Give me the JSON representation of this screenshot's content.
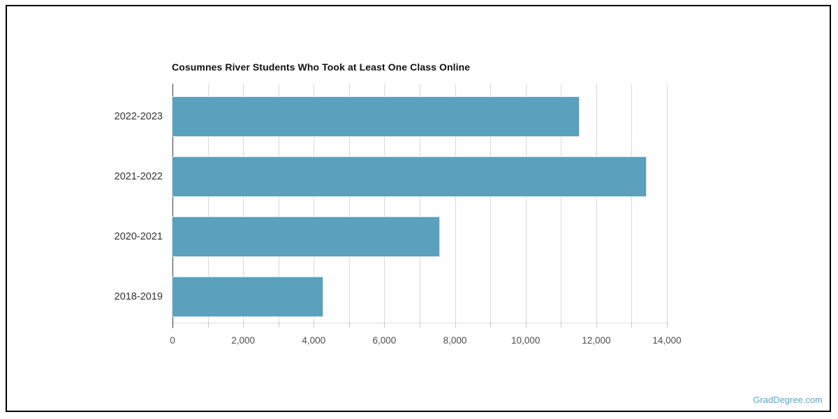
{
  "watermark": {
    "text": "GradDegree.com",
    "color": "#5da7c7"
  },
  "frame_color": "#000000",
  "chart_data": {
    "type": "bar",
    "orientation": "horizontal",
    "title": "Cosumnes River Students Who Took at Least One Class Online",
    "categories": [
      "2022-2023",
      "2021-2022",
      "2020-2021",
      "2018-2019"
    ],
    "values": [
      11500,
      13400,
      7550,
      4250
    ],
    "xlabel": "",
    "ylabel": "",
    "xlim": [
      0,
      14000
    ],
    "grid_step": 1000,
    "tick_step": 1000,
    "label_step": 2000,
    "x_tick_labels": [
      "0",
      "2,000",
      "4,000",
      "6,000",
      "8,000",
      "10,000",
      "12,000",
      "14,000"
    ],
    "bar_color": "#5BA0BD",
    "grid": true,
    "legend": false,
    "axis_color": "#3a3a3a",
    "gridline_color": "#d9d9d9"
  }
}
